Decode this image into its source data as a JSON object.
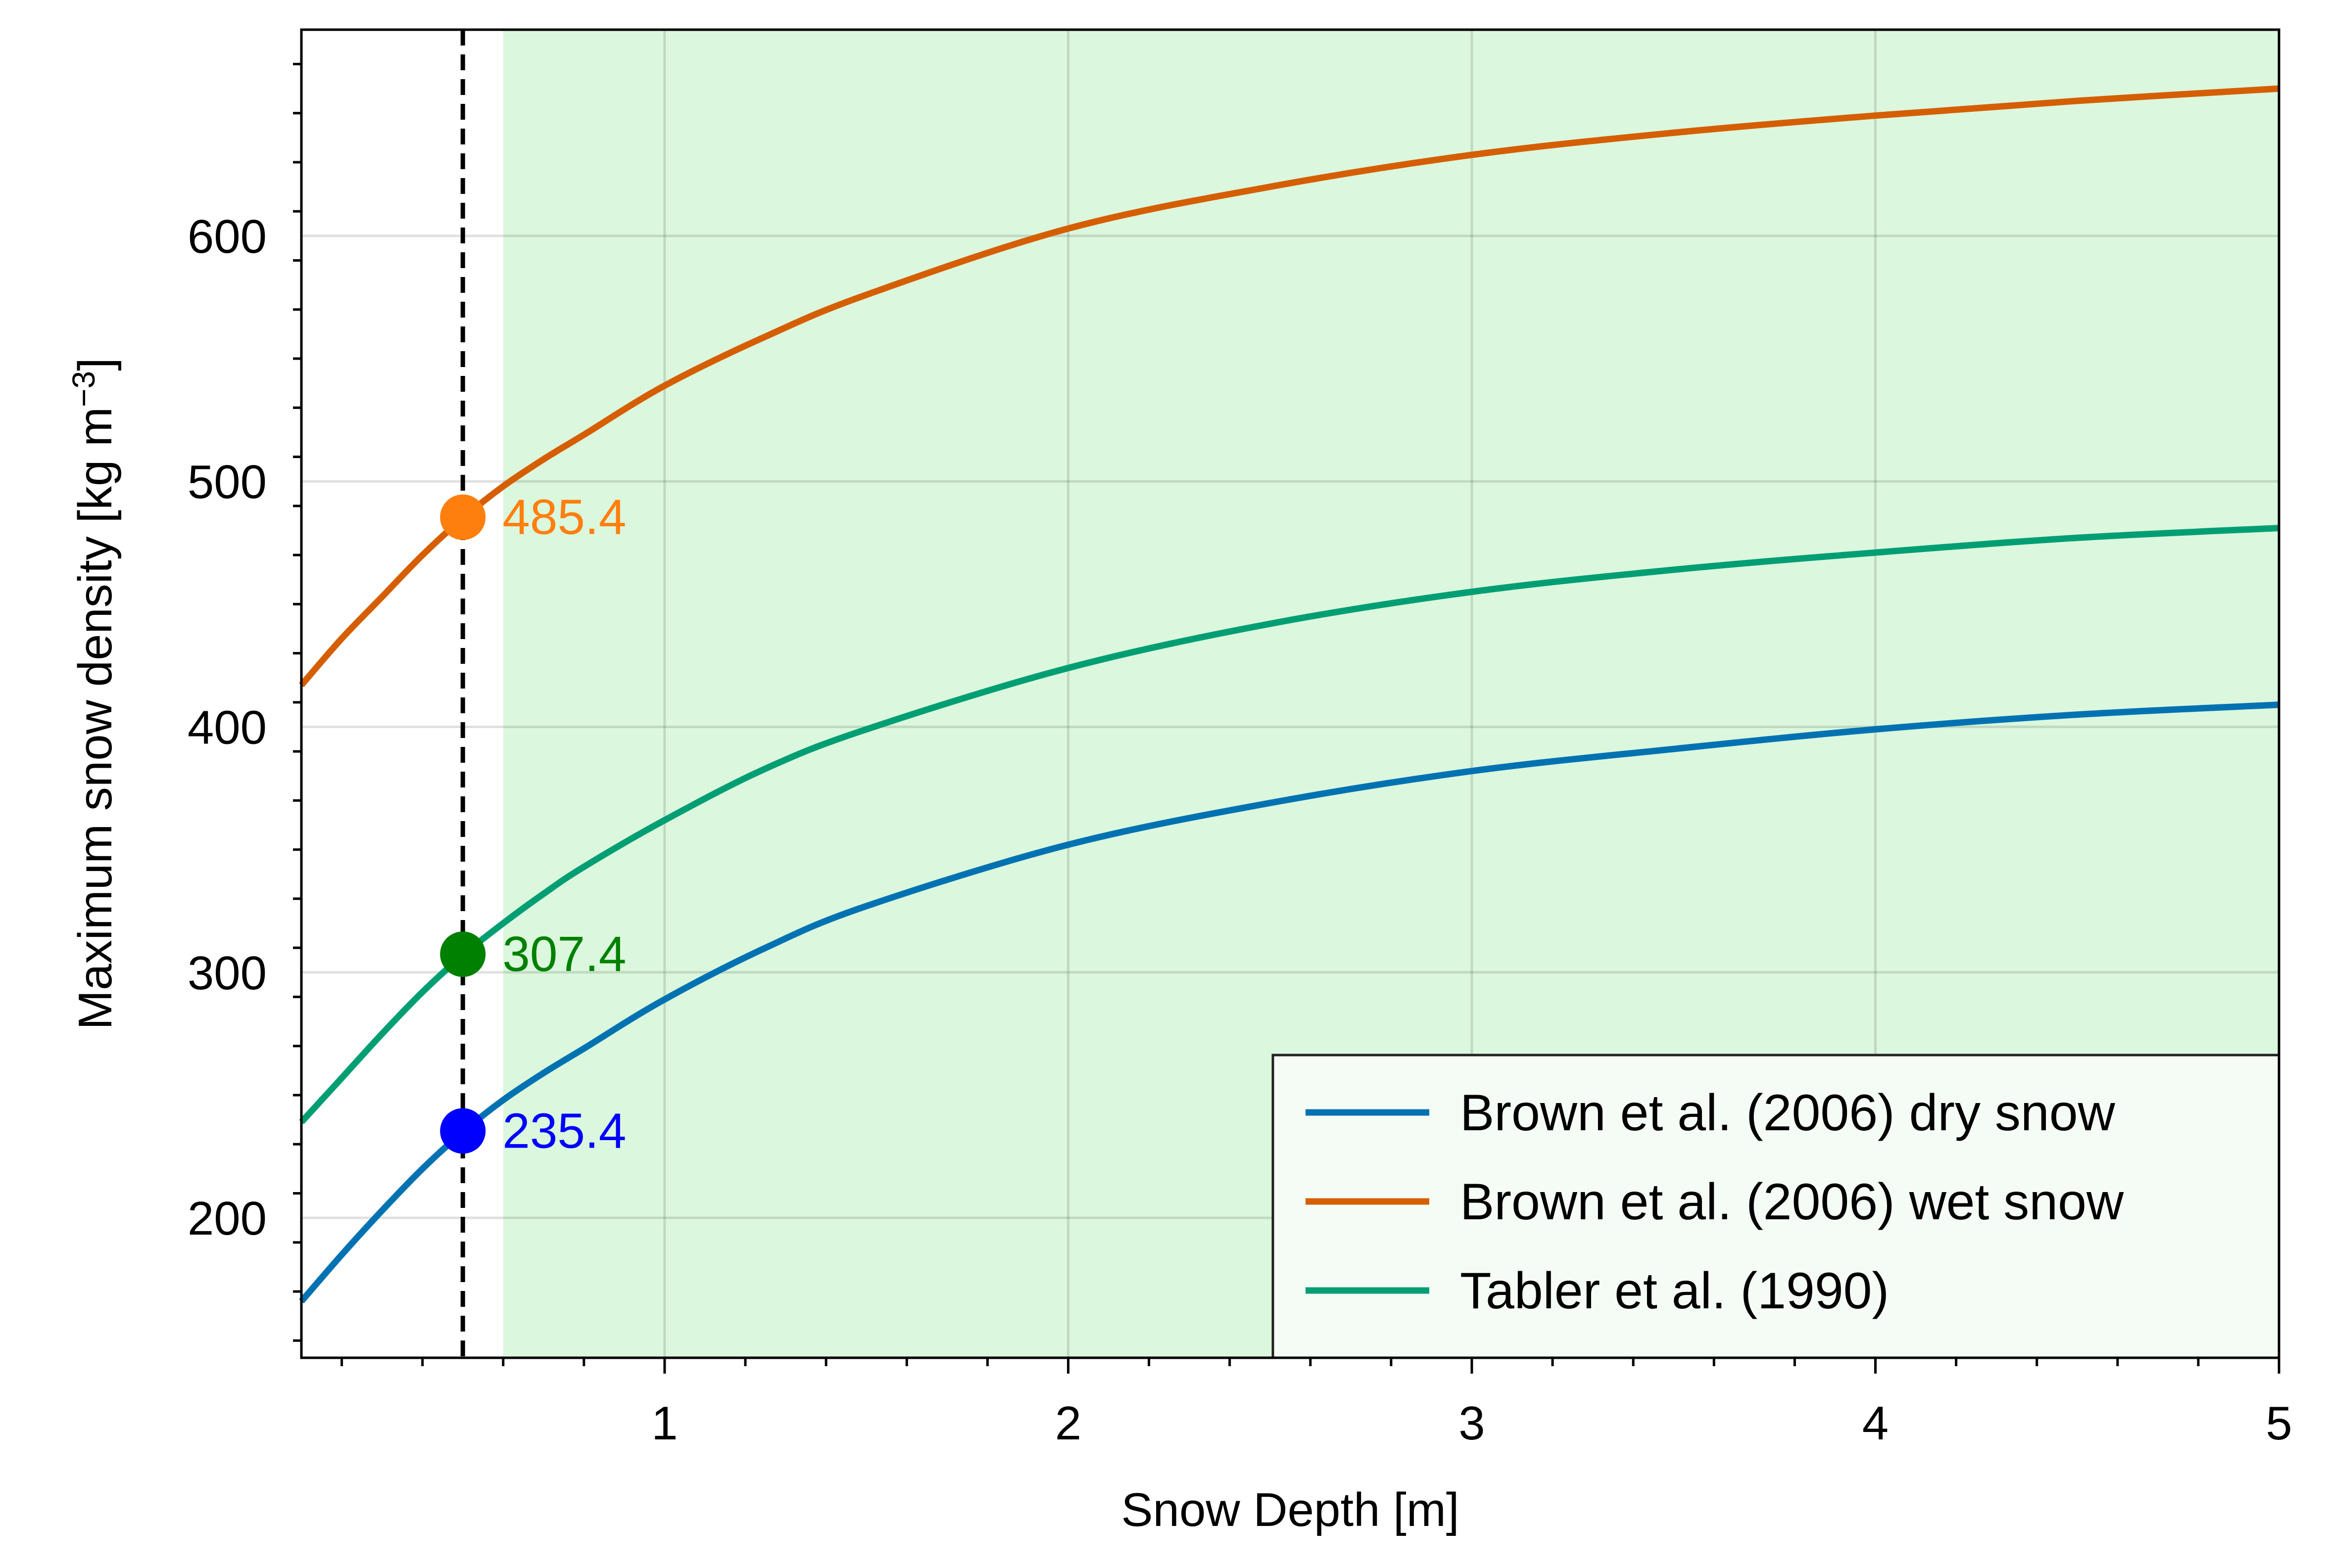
{
  "chart_data": {
    "type": "line",
    "title": "",
    "xlabel": "Snow Depth [m]",
    "ylabel_main": "Maximum snow density [kg m",
    "ylabel_sup": "−3",
    "ylabel_close": "]",
    "xlim": [
      0.1,
      5.0
    ],
    "ylim": [
      143,
      684
    ],
    "xticks": [
      1,
      2,
      3,
      4,
      5
    ],
    "xtick_labels": [
      "1",
      "2",
      "3",
      "4",
      "5"
    ],
    "yticks": [
      200,
      300,
      400,
      500,
      600
    ],
    "ytick_labels": [
      "200",
      "300",
      "400",
      "500",
      "600"
    ],
    "grid": true,
    "legend_position": "lower-right",
    "shaded_region": {
      "x_from": 0.6,
      "x_to": 5.0,
      "color": "#dbf7dd"
    },
    "reference_line": {
      "x": 0.5,
      "style": "dashed",
      "color": "#000000"
    },
    "series": [
      {
        "name": "Brown et al. (2006) dry snow",
        "color": "#0072b2",
        "x": [
          0.1,
          0.2,
          0.3,
          0.4,
          0.5,
          0.6,
          0.7,
          0.8,
          1.0,
          1.25,
          1.5,
          2.0,
          2.5,
          3.0,
          3.5,
          4.0,
          4.5,
          5.0
        ],
        "y": [
          166,
          185,
          203,
          220,
          235,
          248,
          259,
          269,
          289,
          310,
          327,
          352,
          369,
          382,
          391,
          399,
          405,
          409
        ]
      },
      {
        "name": "Brown et al. (2006) wet snow",
        "color": "#d55e00",
        "x": [
          0.1,
          0.2,
          0.3,
          0.4,
          0.5,
          0.6,
          0.7,
          0.8,
          1.0,
          1.25,
          1.5,
          2.0,
          2.5,
          3.0,
          3.5,
          4.0,
          4.5,
          5.0
        ],
        "y": [
          417,
          436,
          453,
          470,
          485,
          498,
          509,
          519,
          539,
          559,
          576,
          603,
          620,
          633,
          642,
          649,
          655,
          660
        ]
      },
      {
        "name": "Tabler et al. (1990)",
        "color": "#009e73",
        "x": [
          0.1,
          0.2,
          0.3,
          0.4,
          0.5,
          0.6,
          0.7,
          0.8,
          1.0,
          1.25,
          1.5,
          2.0,
          2.5,
          3.0,
          3.5,
          4.0,
          4.5,
          5.0
        ],
        "y": [
          239,
          257,
          275,
          292,
          307,
          320,
          332,
          343,
          362,
          383,
          399,
          424,
          442,
          455,
          464,
          471,
          477,
          481
        ]
      }
    ],
    "markers": [
      {
        "x": 0.5,
        "y": 485.4,
        "label": "485.4",
        "color": "#ff7f0e"
      },
      {
        "x": 0.5,
        "y": 307.4,
        "label": "307.4",
        "color": "#008000"
      },
      {
        "x": 0.5,
        "y": 235.4,
        "label": "235.4",
        "color": "#0000ff"
      }
    ]
  }
}
